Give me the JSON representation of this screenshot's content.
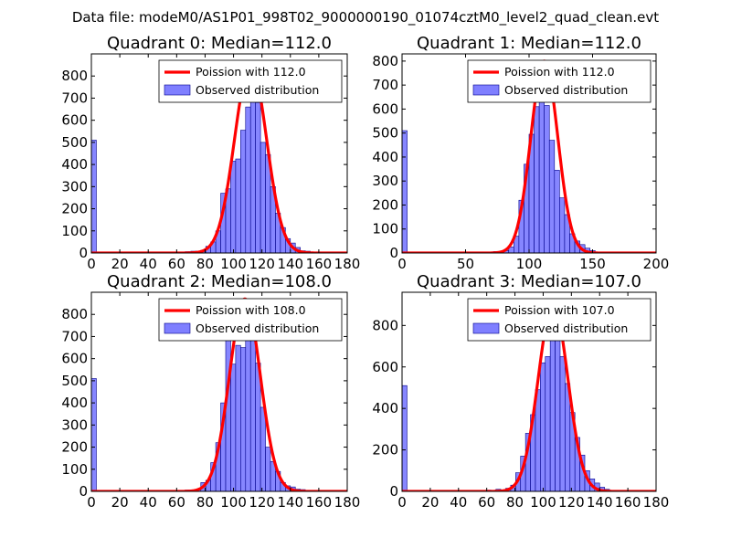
{
  "figure": {
    "suptitle": "Data file: modeM0/AS1P01_998T02_9000000190_01074cztM0_level2_quad_clean.evt"
  },
  "colors": {
    "hist_fill": "#7f7fff",
    "hist_edge": "#00008b",
    "poisson_line": "#ff0000"
  },
  "chart_data": [
    {
      "type": "bar",
      "title": "Quadrant 0: Median=112.0",
      "xlim": [
        0,
        180
      ],
      "ylim": [
        0,
        900
      ],
      "xticks": [
        0,
        20,
        40,
        60,
        80,
        100,
        120,
        140,
        160,
        180
      ],
      "yticks": [
        0,
        100,
        200,
        300,
        400,
        500,
        600,
        700,
        800
      ],
      "legend": {
        "location": "top-right",
        "line_label": "Poission with 112.0",
        "bar_label": "Observed distribution"
      },
      "median": 112.0,
      "poisson_peak": 855,
      "poisson_sigma": 11.2,
      "bin_width": 3.5,
      "bins": [
        {
          "x": 0,
          "count": 510
        },
        {
          "x": 66,
          "count": 6
        },
        {
          "x": 70,
          "count": 8
        },
        {
          "x": 73.5,
          "count": 8
        },
        {
          "x": 77,
          "count": 12
        },
        {
          "x": 80.5,
          "count": 30
        },
        {
          "x": 84,
          "count": 50
        },
        {
          "x": 87.5,
          "count": 100
        },
        {
          "x": 91,
          "count": 270
        },
        {
          "x": 94.5,
          "count": 290
        },
        {
          "x": 98,
          "count": 415
        },
        {
          "x": 101.5,
          "count": 425
        },
        {
          "x": 105,
          "count": 555
        },
        {
          "x": 108.5,
          "count": 660
        },
        {
          "x": 112,
          "count": 725
        },
        {
          "x": 115.5,
          "count": 680
        },
        {
          "x": 119,
          "count": 500
        },
        {
          "x": 122.5,
          "count": 445
        },
        {
          "x": 126,
          "count": 300
        },
        {
          "x": 129.5,
          "count": 180
        },
        {
          "x": 133,
          "count": 115
        },
        {
          "x": 136.5,
          "count": 65
        },
        {
          "x": 140,
          "count": 45
        },
        {
          "x": 143.5,
          "count": 25
        },
        {
          "x": 147,
          "count": 10
        },
        {
          "x": 150.5,
          "count": 8
        }
      ]
    },
    {
      "type": "bar",
      "title": "Quadrant 1: Median=112.0",
      "xlim": [
        0,
        200
      ],
      "ylim": [
        0,
        830
      ],
      "xticks": [
        0,
        50,
        100,
        150,
        200
      ],
      "yticks": [
        0,
        100,
        200,
        300,
        400,
        500,
        600,
        700,
        800
      ],
      "legend": {
        "location": "top-right",
        "line_label": "Poission with 112.0",
        "bar_label": "Observed distribution"
      },
      "median": 112.0,
      "poisson_peak": 800,
      "poisson_sigma": 10.6,
      "bin_width": 4.0,
      "bins": [
        {
          "x": 0,
          "count": 510
        },
        {
          "x": 72,
          "count": 6
        },
        {
          "x": 80,
          "count": 10
        },
        {
          "x": 84,
          "count": 25
        },
        {
          "x": 88,
          "count": 70
        },
        {
          "x": 92,
          "count": 220
        },
        {
          "x": 96,
          "count": 370
        },
        {
          "x": 100,
          "count": 495
        },
        {
          "x": 104,
          "count": 610
        },
        {
          "x": 108,
          "count": 735
        },
        {
          "x": 112,
          "count": 615
        },
        {
          "x": 116,
          "count": 470
        },
        {
          "x": 120,
          "count": 345
        },
        {
          "x": 124,
          "count": 230
        },
        {
          "x": 128,
          "count": 160
        },
        {
          "x": 132,
          "count": 80
        },
        {
          "x": 136,
          "count": 50
        },
        {
          "x": 140,
          "count": 35
        },
        {
          "x": 144,
          "count": 20
        },
        {
          "x": 148,
          "count": 10
        }
      ]
    },
    {
      "type": "bar",
      "title": "Quadrant 2: Median=108.0",
      "xlim": [
        0,
        180
      ],
      "ylim": [
        0,
        900
      ],
      "xticks": [
        0,
        20,
        40,
        60,
        80,
        100,
        120,
        140,
        160,
        180
      ],
      "yticks": [
        0,
        100,
        200,
        300,
        400,
        500,
        600,
        700,
        800
      ],
      "legend": {
        "location": "top-right",
        "line_label": "Poission with 108.0",
        "bar_label": "Observed distribution"
      },
      "median": 108.0,
      "poisson_peak": 870,
      "poisson_sigma": 10.8,
      "bin_width": 3.5,
      "bins": [
        {
          "x": 0,
          "count": 510
        },
        {
          "x": 66,
          "count": 6
        },
        {
          "x": 73.5,
          "count": 8
        },
        {
          "x": 77,
          "count": 40
        },
        {
          "x": 80.5,
          "count": 50
        },
        {
          "x": 84,
          "count": 130
        },
        {
          "x": 87.5,
          "count": 220
        },
        {
          "x": 91,
          "count": 400
        },
        {
          "x": 94.5,
          "count": 700
        },
        {
          "x": 98,
          "count": 575
        },
        {
          "x": 101.5,
          "count": 660
        },
        {
          "x": 105,
          "count": 650
        },
        {
          "x": 108.5,
          "count": 760
        },
        {
          "x": 112,
          "count": 700
        },
        {
          "x": 115.5,
          "count": 580
        },
        {
          "x": 119,
          "count": 380
        },
        {
          "x": 122.5,
          "count": 200
        },
        {
          "x": 126,
          "count": 135
        },
        {
          "x": 129.5,
          "count": 90
        },
        {
          "x": 133,
          "count": 40
        },
        {
          "x": 136.5,
          "count": 25
        },
        {
          "x": 140,
          "count": 20
        },
        {
          "x": 143.5,
          "count": 10
        },
        {
          "x": 147,
          "count": 8
        }
      ]
    },
    {
      "type": "bar",
      "title": "Quadrant 3: Median=107.0",
      "xlim": [
        0,
        180
      ],
      "ylim": [
        0,
        960
      ],
      "xticks": [
        0,
        20,
        40,
        60,
        80,
        100,
        120,
        140,
        160,
        180
      ],
      "yticks": [
        0,
        200,
        400,
        600,
        800
      ],
      "legend": {
        "location": "top-right",
        "line_label": "Poission with 107.0",
        "bar_label": "Observed distribution"
      },
      "median": 107.0,
      "poisson_peak": 900,
      "poisson_sigma": 10.5,
      "bin_width": 3.5,
      "bins": [
        {
          "x": 0,
          "count": 510
        },
        {
          "x": 59.5,
          "count": 6
        },
        {
          "x": 66.5,
          "count": 10
        },
        {
          "x": 73.5,
          "count": 15
        },
        {
          "x": 77,
          "count": 30
        },
        {
          "x": 80.5,
          "count": 90
        },
        {
          "x": 84,
          "count": 170
        },
        {
          "x": 87.5,
          "count": 280
        },
        {
          "x": 91,
          "count": 370
        },
        {
          "x": 94.5,
          "count": 490
        },
        {
          "x": 98,
          "count": 620
        },
        {
          "x": 101.5,
          "count": 650
        },
        {
          "x": 105,
          "count": 800
        },
        {
          "x": 108.5,
          "count": 790
        },
        {
          "x": 112,
          "count": 650
        },
        {
          "x": 115.5,
          "count": 520
        },
        {
          "x": 119,
          "count": 380
        },
        {
          "x": 122.5,
          "count": 260
        },
        {
          "x": 126,
          "count": 175
        },
        {
          "x": 129.5,
          "count": 100
        },
        {
          "x": 133,
          "count": 60
        },
        {
          "x": 136.5,
          "count": 40
        },
        {
          "x": 140,
          "count": 20
        },
        {
          "x": 143.5,
          "count": 10
        },
        {
          "x": 147,
          "count": 5
        }
      ]
    }
  ]
}
